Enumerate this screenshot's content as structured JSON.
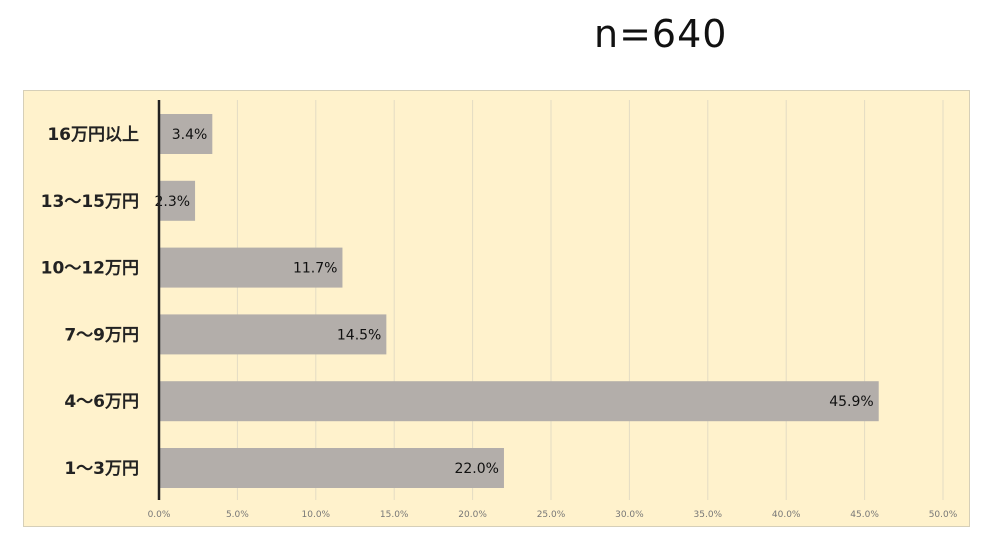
{
  "header": {
    "sample_size": "n=640"
  },
  "colors": {
    "panel_background": "#fff2cc",
    "bar_fill": "#b3aeaa",
    "gridline": "#e3dcc4",
    "axis_line": "#222222"
  },
  "chart_data": {
    "type": "bar",
    "orientation": "horizontal",
    "categories": [
      "16万円以上",
      "13〜15万円",
      "10〜12万円",
      "7〜9万円",
      "4〜6万円",
      "1〜3万円"
    ],
    "values": [
      3.4,
      2.3,
      11.7,
      14.5,
      45.9,
      22.0
    ],
    "data_labels": [
      "3.4%",
      "2.3%",
      "11.7%",
      "14.5%",
      "45.9%",
      "22.0%"
    ],
    "xlim": [
      0,
      50
    ],
    "x_ticks": [
      "0.0%",
      "5.0%",
      "10.0%",
      "15.0%",
      "20.0%",
      "25.0%",
      "30.0%",
      "35.0%",
      "40.0%",
      "45.0%",
      "50.0%"
    ],
    "grid": true,
    "legend": "none"
  }
}
